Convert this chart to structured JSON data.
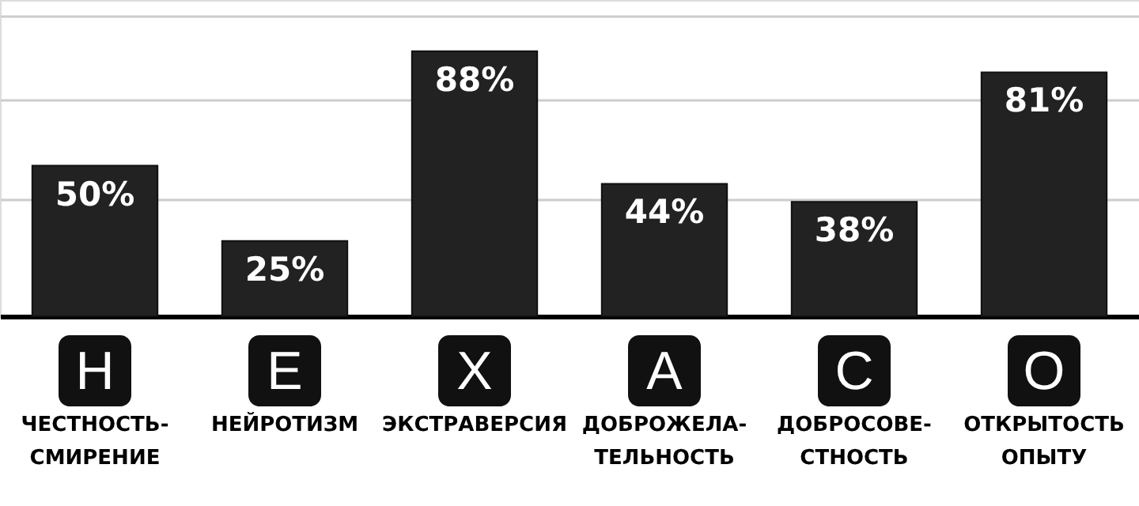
{
  "chart_data": {
    "type": "bar",
    "categories": [
      "ЧЕСТНОСТЬ-\nСМИРЕНИЕ",
      "НЕЙРОТИЗМ",
      "ЭКСТРАВЕРСИЯ",
      "ДОБРОЖЕЛА-\nТЕЛЬНОСТЬ",
      "ДОБРОСОВЕ-\nСТНОСТЬ",
      "ОТКРЫТОСТЬ\nОПЫТУ"
    ],
    "values": [
      50,
      25,
      88,
      44,
      38,
      81
    ],
    "value_labels": [
      "50%",
      "25%",
      "88%",
      "44%",
      "38%",
      "81%"
    ],
    "color": "#222222",
    "ylim": [
      0,
      105
    ],
    "yticks": [
      {
        "value": 39,
        "label": null
      },
      {
        "value": 72,
        "label": null
      },
      {
        "value": 100,
        "label": null
      }
    ],
    "grid": "y",
    "tick_labels": "x",
    "annotations": [
      "H",
      "E",
      "X",
      "A",
      "C",
      "O"
    ]
  }
}
